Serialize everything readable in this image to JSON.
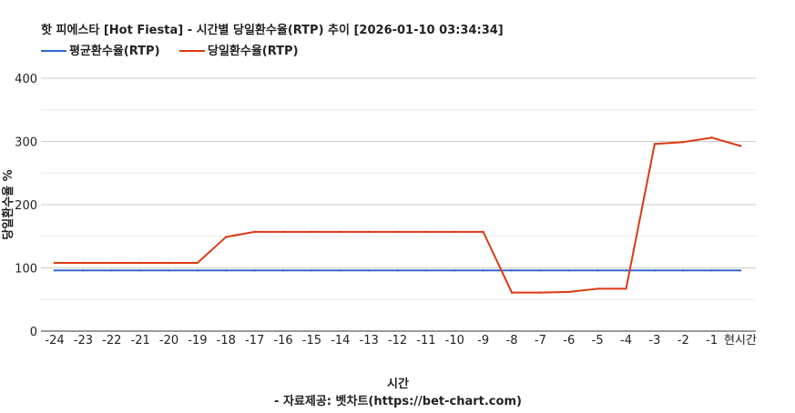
{
  "chart_data": {
    "type": "line",
    "title": "핫 피에스타 [Hot Fiesta] - 시간별 당일환수율(RTP) 추이 [2026-01-10 03:34:34]",
    "xlabel": "시간",
    "ylabel": "당일환수율 %",
    "credit": "- 자료제공: 벳차트(https://bet-chart.com)",
    "categories": [
      "-24",
      "-23",
      "-22",
      "-21",
      "-20",
      "-19",
      "-18",
      "-17",
      "-16",
      "-15",
      "-14",
      "-13",
      "-12",
      "-11",
      "-10",
      "-9",
      "-8",
      "-7",
      "-6",
      "-5",
      "-4",
      "-3",
      "-2",
      "-1",
      "현시간"
    ],
    "ylim": [
      0,
      400
    ],
    "yticks": [
      0,
      100,
      200,
      300,
      400
    ],
    "grid": true,
    "legend_position": "top-left",
    "series": [
      {
        "name": "평균환수율(RTP)",
        "color": "#3366cc",
        "values": [
          96,
          96,
          96,
          96,
          96,
          96,
          96,
          96,
          96,
          96,
          96,
          96,
          96,
          96,
          96,
          96,
          96,
          96,
          96,
          96,
          96,
          96,
          96,
          96,
          96
        ]
      },
      {
        "name": "당일환수율(RTP)",
        "color": "#dc3912",
        "values": [
          108,
          108,
          108,
          108,
          108,
          108,
          149,
          157,
          157,
          157,
          157,
          157,
          157,
          157,
          157,
          157,
          61,
          61,
          62,
          67,
          67,
          296,
          299,
          306,
          293
        ]
      }
    ]
  }
}
